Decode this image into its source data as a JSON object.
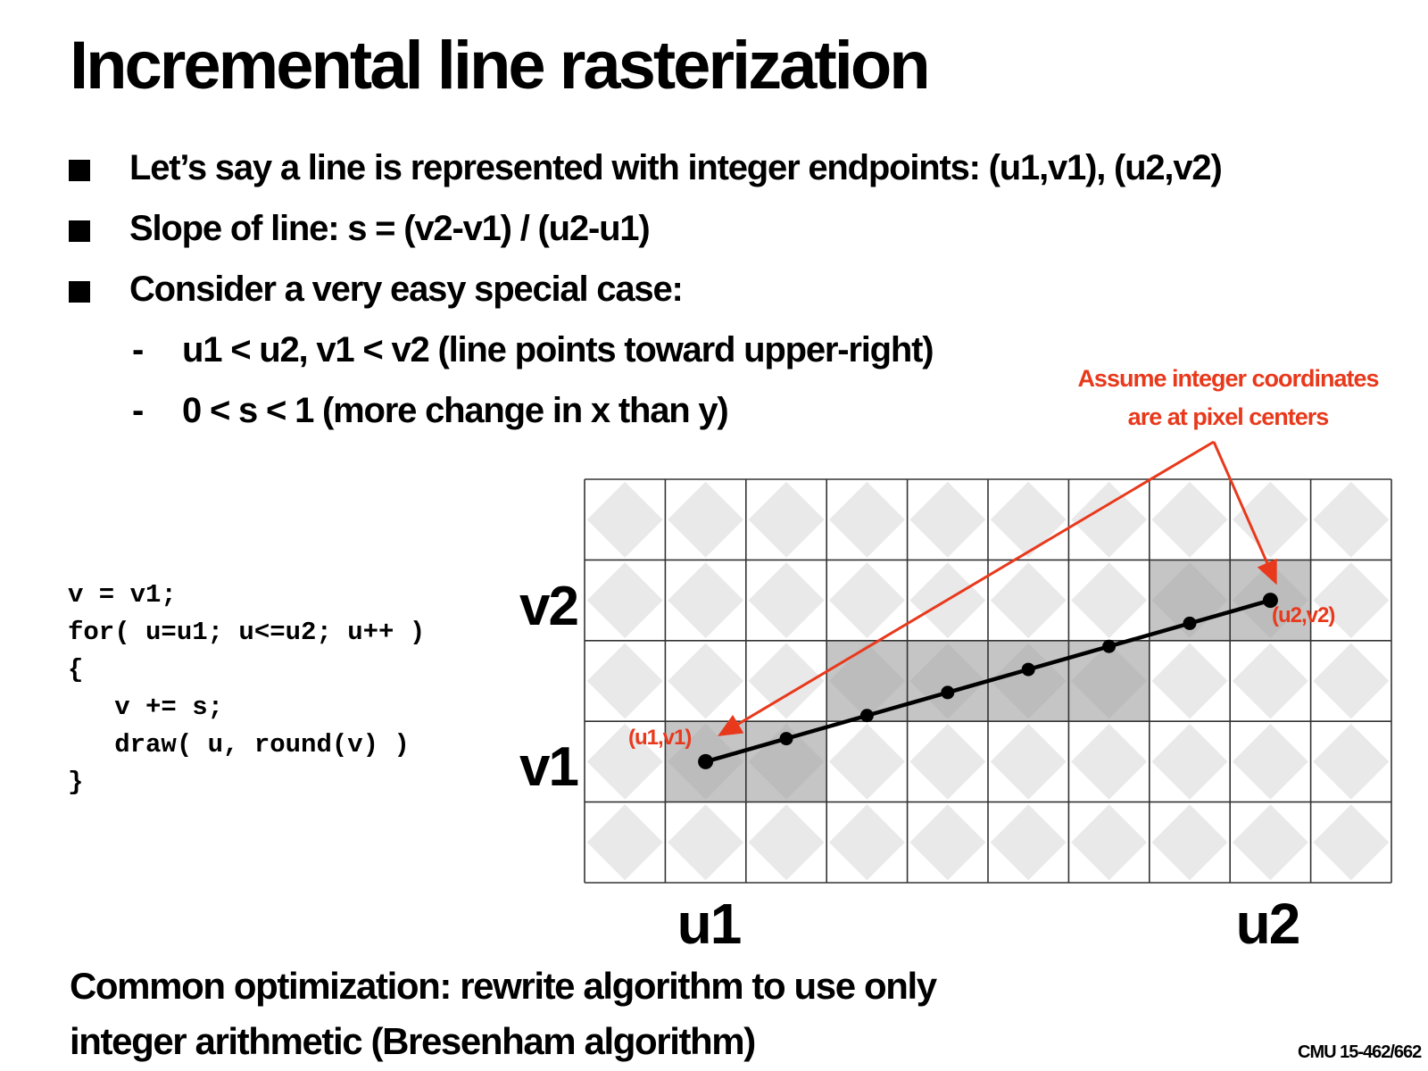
{
  "title": "Incremental line rasterization",
  "bullets": [
    "Let’s say a line is represented with integer endpoints: (u1,v1), (u2,v2)",
    "Slope of line: s = (v2-v1) / (u2-u1)",
    "Consider a very easy special case:"
  ],
  "sub_bullets": [
    "u1 < u2, v1 < v2 (line points toward upper-right)",
    "0 < s < 1 (more change in x than y)"
  ],
  "sub_bullet_marker": "-",
  "code": [
    "v = v1;",
    "for( u=u1; u<=u2; u++ )",
    "{",
    "   v += s;",
    "   draw( u, round(v) )",
    "}"
  ],
  "diagram": {
    "annotation": [
      "Assume integer coordinates",
      "are at pixel centers"
    ],
    "axis_labels": {
      "v2": "v2",
      "v1": "v1",
      "u1": "u1",
      "u2": "u2"
    },
    "point_labels": {
      "start": "(u1,v1)",
      "end": "(u2,v2)"
    },
    "grid": {
      "columns": 10,
      "rows": 5
    },
    "line": {
      "start": {
        "col": 1,
        "row": 3
      },
      "end": {
        "col": 8,
        "row": 1
      }
    },
    "shaded_pixels": [
      [
        1,
        3
      ],
      [
        2,
        3
      ],
      [
        3,
        2
      ],
      [
        4,
        2
      ],
      [
        5,
        2
      ],
      [
        6,
        2
      ],
      [
        7,
        1
      ],
      [
        8,
        1
      ]
    ],
    "colors": {
      "accent": "#e8391c",
      "shade": "#9e9e9e",
      "diamond": "#e9e9e9",
      "grid_line": "#333333"
    }
  },
  "bottom_note": "Common optimization: rewrite algorithm to use only integer arithmetic (Bresenham algorithm)",
  "footer": "CMU 15-462/662"
}
